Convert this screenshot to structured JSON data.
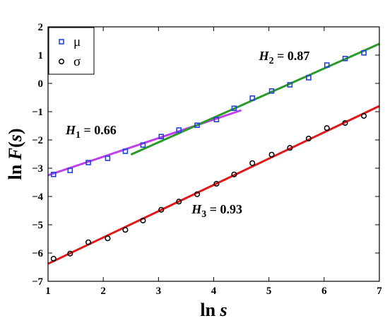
{
  "chart_data": {
    "type": "scatter",
    "title": "",
    "xlabel": {
      "prefix": "ln ",
      "var": "s"
    },
    "ylabel": {
      "prefix": "ln ",
      "var": "F",
      "suffix": "(s)"
    },
    "xlim": [
      1,
      7
    ],
    "ylim": [
      -7,
      2
    ],
    "xticks": [
      1,
      2,
      3,
      4,
      5,
      6,
      7
    ],
    "yticks": [
      -7,
      -6,
      -5,
      -4,
      -3,
      -2,
      -1,
      0,
      1,
      2
    ],
    "grid": false,
    "legend_position": "top-left",
    "series": [
      {
        "name": "μ",
        "marker": "square",
        "color": "#2244dd",
        "x": [
          1.1,
          1.4,
          1.73,
          2.08,
          2.4,
          2.72,
          3.05,
          3.37,
          3.7,
          4.05,
          4.37,
          4.7,
          5.05,
          5.38,
          5.72,
          6.05,
          6.38,
          6.72
        ],
        "y": [
          -3.22,
          -3.08,
          -2.8,
          -2.65,
          -2.4,
          -2.18,
          -1.88,
          -1.65,
          -1.48,
          -1.28,
          -0.88,
          -0.52,
          -0.27,
          -0.05,
          0.2,
          0.65,
          0.88,
          1.08
        ]
      },
      {
        "name": "σ",
        "marker": "circle",
        "color": "#000000",
        "x": [
          1.1,
          1.4,
          1.73,
          2.08,
          2.4,
          2.72,
          3.05,
          3.37,
          3.7,
          4.05,
          4.37,
          4.7,
          5.05,
          5.38,
          5.72,
          6.05,
          6.38,
          6.72
        ],
        "y": [
          -6.2,
          -6.02,
          -5.62,
          -5.48,
          -5.18,
          -4.85,
          -4.47,
          -4.18,
          -3.92,
          -3.55,
          -3.22,
          -2.82,
          -2.52,
          -2.28,
          -1.95,
          -1.58,
          -1.4,
          -1.15
        ]
      }
    ],
    "fit_lines": [
      {
        "id": "h1",
        "color": "#c040e8",
        "x": [
          1.0,
          4.5
        ],
        "y": [
          -3.25,
          -0.95
        ]
      },
      {
        "id": "h2",
        "color": "#2a9a2a",
        "x": [
          2.5,
          7.0
        ],
        "y": [
          -2.52,
          1.4
        ]
      },
      {
        "id": "h3",
        "color": "#e01818",
        "x": [
          1.0,
          7.0
        ],
        "y": [
          -6.38,
          -0.8
        ]
      }
    ],
    "annotations": [
      {
        "id": "h1",
        "symbol": "H",
        "sub": "1",
        "text": " = 0.66",
        "x": 1.32,
        "y": -1.8
      },
      {
        "id": "h2",
        "symbol": "H",
        "sub": "2",
        "text": " = 0.87",
        "x": 4.82,
        "y": 0.82
      },
      {
        "id": "h3",
        "symbol": "H",
        "sub": "3",
        "text": " = 0.93",
        "x": 3.6,
        "y": -4.6
      }
    ]
  }
}
